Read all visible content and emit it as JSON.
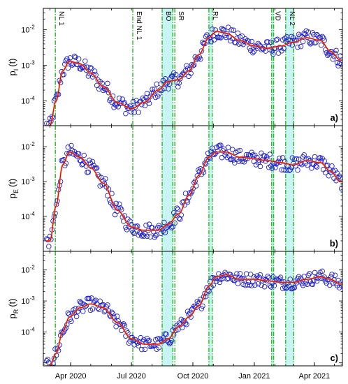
{
  "chart_data": [
    {
      "type": "scatter",
      "panel_label": "a)",
      "ylabel_main": "p",
      "ylabel_sub": "I",
      "ylabel_tail": "(t)",
      "yscale": "log",
      "ylim": [
        2e-05,
        0.04
      ],
      "yticks": [
        {
          "value": 0.0001,
          "mantissa": "10",
          "exp": "-4"
        },
        {
          "value": 0.001,
          "mantissa": "10",
          "exp": "-3"
        },
        {
          "value": 0.01,
          "mantissa": "10",
          "exp": "-2"
        }
      ],
      "curve_anchors": [
        [
          "2020-03-01",
          2e-05
        ],
        [
          "2020-03-10",
          0.0001
        ],
        [
          "2020-03-20",
          0.0007
        ],
        [
          "2020-03-30",
          0.0013
        ],
        [
          "2020-04-15",
          0.0011
        ],
        [
          "2020-05-01",
          0.0006
        ],
        [
          "2020-05-20",
          0.00025
        ],
        [
          "2020-06-10",
          9e-05
        ],
        [
          "2020-07-01",
          6e-05
        ],
        [
          "2020-07-20",
          9e-05
        ],
        [
          "2020-08-10",
          0.0002
        ],
        [
          "2020-08-25",
          0.00035
        ],
        [
          "2020-09-10",
          0.0004
        ],
        [
          "2020-09-25",
          0.0007
        ],
        [
          "2020-10-10",
          0.002
        ],
        [
          "2020-10-25",
          0.006
        ],
        [
          "2020-11-05",
          0.009
        ],
        [
          "2020-11-20",
          0.008
        ],
        [
          "2020-12-10",
          0.005
        ],
        [
          "2021-01-01",
          0.0035
        ],
        [
          "2021-01-20",
          0.003
        ],
        [
          "2021-02-10",
          0.0035
        ],
        [
          "2021-03-01",
          0.0045
        ],
        [
          "2021-03-20",
          0.006
        ],
        [
          "2021-04-10",
          0.005
        ],
        [
          "2021-04-25",
          0.0025
        ],
        [
          "2021-05-10",
          0.0014
        ]
      ]
    },
    {
      "type": "scatter",
      "panel_label": "b)",
      "ylabel_main": "p",
      "ylabel_sub": "E",
      "ylabel_tail": "(t)",
      "yscale": "log",
      "ylim": [
        1e-05,
        0.04
      ],
      "yticks": [
        {
          "value": 0.0001,
          "mantissa": "10",
          "exp": "-4"
        },
        {
          "value": 0.001,
          "mantissa": "10",
          "exp": "-3"
        },
        {
          "value": 0.01,
          "mantissa": "10",
          "exp": "-2"
        }
      ],
      "curve_anchors": [
        [
          "2020-03-01",
          2e-05
        ],
        [
          "2020-03-10",
          0.0002
        ],
        [
          "2020-03-20",
          0.003
        ],
        [
          "2020-03-30",
          0.007
        ],
        [
          "2020-04-15",
          0.005
        ],
        [
          "2020-05-01",
          0.0025
        ],
        [
          "2020-05-20",
          0.0009
        ],
        [
          "2020-06-10",
          0.00015
        ],
        [
          "2020-07-01",
          5e-05
        ],
        [
          "2020-07-20",
          4e-05
        ],
        [
          "2020-08-10",
          4e-05
        ],
        [
          "2020-08-25",
          6e-05
        ],
        [
          "2020-09-10",
          0.00012
        ],
        [
          "2020-09-25",
          0.0004
        ],
        [
          "2020-10-10",
          0.0015
        ],
        [
          "2020-10-25",
          0.005
        ],
        [
          "2020-11-05",
          0.007
        ],
        [
          "2020-11-20",
          0.007
        ],
        [
          "2020-12-10",
          0.005
        ],
        [
          "2021-01-01",
          0.0045
        ],
        [
          "2021-01-20",
          0.004
        ],
        [
          "2021-02-10",
          0.0035
        ],
        [
          "2021-03-01",
          0.003
        ],
        [
          "2021-03-20",
          0.004
        ],
        [
          "2021-04-10",
          0.0035
        ],
        [
          "2021-04-25",
          0.002
        ],
        [
          "2021-05-10",
          0.001
        ]
      ]
    },
    {
      "type": "scatter",
      "panel_label": "c)",
      "ylabel_main": "p",
      "ylabel_sub": "R",
      "ylabel_tail": "(t)",
      "yscale": "log",
      "ylim": [
        8e-06,
        0.04
      ],
      "yticks": [
        {
          "value": 0.0001,
          "mantissa": "10",
          "exp": "-4"
        },
        {
          "value": 0.001,
          "mantissa": "10",
          "exp": "-3"
        },
        {
          "value": 0.01,
          "mantissa": "10",
          "exp": "-2"
        }
      ],
      "curve_anchors": [
        [
          "2020-03-01",
          8e-06
        ],
        [
          "2020-03-10",
          2e-05
        ],
        [
          "2020-03-20",
          0.0001
        ],
        [
          "2020-03-30",
          0.0003
        ],
        [
          "2020-04-15",
          0.0006
        ],
        [
          "2020-05-01",
          0.0008
        ],
        [
          "2020-05-20",
          0.0006
        ],
        [
          "2020-06-10",
          0.0002
        ],
        [
          "2020-07-01",
          6e-05
        ],
        [
          "2020-07-20",
          4e-05
        ],
        [
          "2020-08-10",
          4e-05
        ],
        [
          "2020-08-25",
          6e-05
        ],
        [
          "2020-09-10",
          0.00015
        ],
        [
          "2020-09-25",
          0.0003
        ],
        [
          "2020-10-10",
          0.0007
        ],
        [
          "2020-10-25",
          0.003
        ],
        [
          "2020-11-05",
          0.006
        ],
        [
          "2020-11-20",
          0.007
        ],
        [
          "2020-12-10",
          0.005
        ],
        [
          "2021-01-01",
          0.005
        ],
        [
          "2021-01-20",
          0.0045
        ],
        [
          "2021-02-10",
          0.004
        ],
        [
          "2021-03-01",
          0.004
        ],
        [
          "2021-03-20",
          0.005
        ],
        [
          "2021-04-10",
          0.006
        ],
        [
          "2021-04-25",
          0.005
        ],
        [
          "2021-05-10",
          0.0035
        ]
      ]
    }
  ],
  "x_axis": {
    "type": "date",
    "range": [
      "2020-02-20",
      "2021-05-13"
    ],
    "ticks": [
      {
        "date": "2020-04-01",
        "label": "Apr 2020"
      },
      {
        "date": "2020-07-01",
        "label": "Jul 2020"
      },
      {
        "date": "2020-10-01",
        "label": "Oct 2020"
      },
      {
        "date": "2021-01-01",
        "label": "Jan 2021"
      },
      {
        "date": "2021-04-01",
        "label": "Apr 2021"
      }
    ]
  },
  "events": [
    {
      "label": "NL 1",
      "date": "2020-03-09",
      "band_end": "2020-03-09"
    },
    {
      "label": "End NL 1",
      "date": "2020-07-03",
      "band_end": "2020-07-03"
    },
    {
      "label": "BO",
      "date": "2020-08-16",
      "band_end": "2020-09-01"
    },
    {
      "label": "SR",
      "date": "2020-09-04",
      "band_end": "2020-09-04"
    },
    {
      "label": "RL",
      "date": "2020-10-25",
      "band_end": "2020-10-30"
    },
    {
      "label": "VD",
      "date": "2021-01-27",
      "band_end": "2021-01-30"
    },
    {
      "label": "NL 2",
      "date": "2021-02-17",
      "band_end": "2021-03-01"
    }
  ],
  "colors": {
    "markers": "#2020cc",
    "curve_red": "#e00000",
    "curve_orange": "#ff9a3c",
    "event_line": "#22bb22",
    "event_band": "#c9f4f4"
  }
}
